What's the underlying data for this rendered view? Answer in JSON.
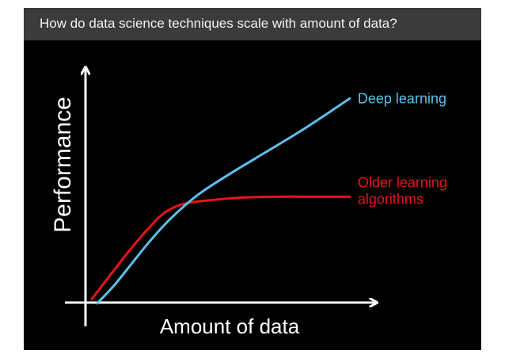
{
  "slide": {
    "title": "How do data science techniques scale with amount of data?"
  },
  "colors": {
    "background": "#000000",
    "title_bar": "#3b3b3b",
    "axis": "#ffffff",
    "deep_learning": "#5bc0eb",
    "older_learning": "#e8131b"
  },
  "chart_data": {
    "type": "line",
    "title": "",
    "xlabel": "Amount of data",
    "ylabel": "Performance",
    "xlim": [
      0,
      100
    ],
    "ylim": [
      0,
      100
    ],
    "grid": false,
    "ticks": "none",
    "legend": "inline labels at right end of each curve",
    "series": [
      {
        "name": "Deep learning",
        "color": "#5bc0eb",
        "label_lines": [
          "Deep learning"
        ],
        "points": [
          [
            2,
            0
          ],
          [
            8,
            8
          ],
          [
            15,
            19
          ],
          [
            22,
            30
          ],
          [
            30,
            41
          ],
          [
            40,
            52
          ],
          [
            52,
            62
          ],
          [
            65,
            72
          ],
          [
            78,
            82
          ],
          [
            90,
            92
          ],
          [
            97,
            98
          ]
        ]
      },
      {
        "name": "Older learning algorithms",
        "color": "#e8131b",
        "label_lines": [
          "Older learning",
          "algorithms"
        ],
        "points": [
          [
            0,
            2
          ],
          [
            6,
            12
          ],
          [
            14,
            25
          ],
          [
            20,
            34
          ],
          [
            26,
            42
          ],
          [
            31,
            46
          ],
          [
            36,
            48
          ],
          [
            42,
            49
          ],
          [
            55,
            50.5
          ],
          [
            70,
            51
          ],
          [
            85,
            51
          ],
          [
            97,
            51
          ]
        ]
      }
    ]
  }
}
